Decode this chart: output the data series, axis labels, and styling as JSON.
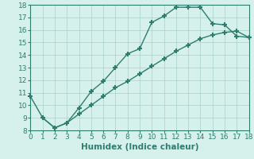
{
  "line1_x": [
    0,
    1,
    2,
    3,
    4,
    5,
    6,
    7,
    8,
    9,
    10,
    11,
    12,
    13,
    14,
    15,
    16,
    17,
    18
  ],
  "line1_y": [
    10.7,
    9.0,
    8.2,
    8.6,
    9.8,
    11.1,
    11.9,
    13.0,
    14.1,
    14.5,
    16.6,
    17.1,
    17.8,
    17.8,
    17.8,
    16.5,
    16.4,
    15.5,
    15.4
  ],
  "line2_x": [
    1,
    2,
    3,
    4,
    5,
    6,
    7,
    8,
    9,
    10,
    11,
    12,
    13,
    14,
    15,
    16,
    17,
    18
  ],
  "line2_y": [
    9.0,
    8.2,
    8.6,
    9.3,
    10.0,
    10.7,
    11.4,
    11.9,
    12.5,
    13.1,
    13.7,
    14.3,
    14.8,
    15.3,
    15.6,
    15.8,
    15.9,
    15.4
  ],
  "line_color": "#2e7d6e",
  "bg_color": "#d6f0ec",
  "grid_color": "#aacfca",
  "xlabel": "Humidex (Indice chaleur)",
  "xlim": [
    0,
    18
  ],
  "ylim": [
    8,
    18
  ],
  "xticks": [
    0,
    1,
    2,
    3,
    4,
    5,
    6,
    7,
    8,
    9,
    10,
    11,
    12,
    13,
    14,
    15,
    16,
    17,
    18
  ],
  "yticks": [
    8,
    9,
    10,
    11,
    12,
    13,
    14,
    15,
    16,
    17,
    18
  ],
  "marker": "+",
  "markersize": 5,
  "markeredgewidth": 1.5,
  "linewidth": 1.0,
  "tick_fontsize": 6.5,
  "xlabel_fontsize": 7.5
}
